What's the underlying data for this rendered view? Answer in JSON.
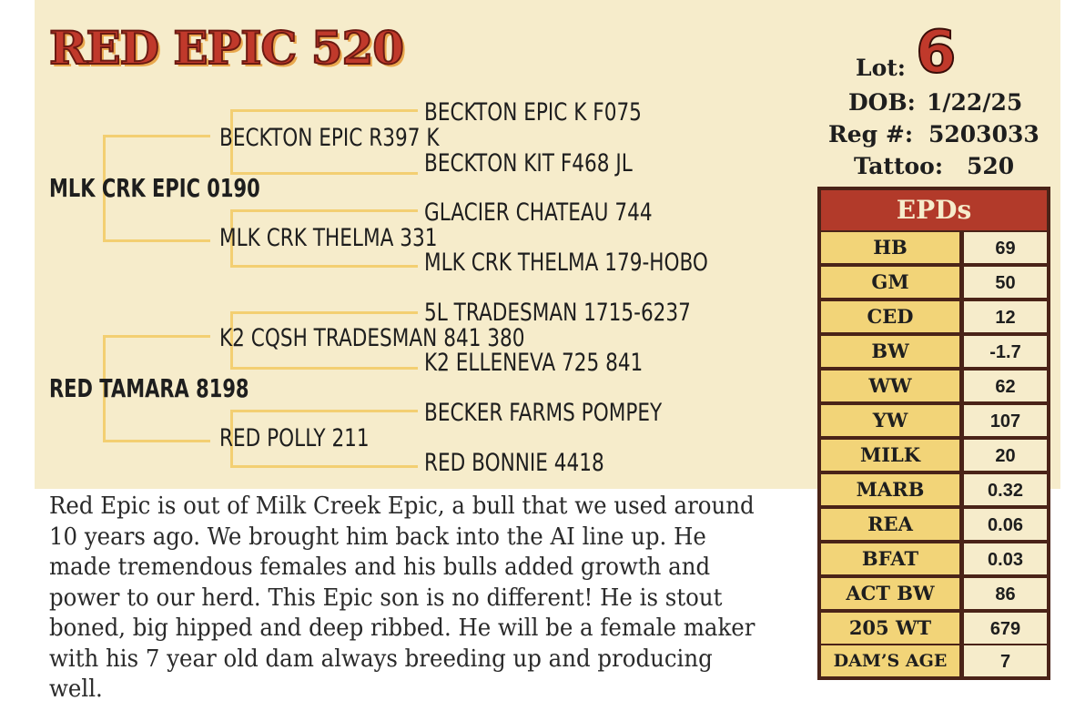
{
  "title": "RED EPIC 520",
  "lot": {
    "label": "Lot:",
    "number": "6"
  },
  "dob": {
    "label": "DOB:",
    "value": "1/22/25"
  },
  "reg": {
    "label": "Reg #:",
    "value": "5203033"
  },
  "tattoo": {
    "label": "Tattoo:",
    "value": "520"
  },
  "pedigree": {
    "sire": "MLK CRK EPIC 0190",
    "sire_sire": "BECKTON EPIC R397 K",
    "sire_sire_sire": "BECKTON EPIC K F075",
    "sire_sire_dam": "BECKTON KIT F468 JL",
    "sire_dam": "MLK CRK THELMA 331",
    "sire_dam_sire": "GLACIER CHATEAU 744",
    "sire_dam_dam": "MLK CRK THELMA 179-HOBO",
    "dam": "RED TAMARA 8198",
    "dam_sire": "K2 CQSH TRADESMAN 841 380",
    "dam_sire_sire": "5L TRADESMAN 1715-6237",
    "dam_sire_dam": "K2 ELLENEVA 725 841",
    "dam_dam": "RED POLLY 211",
    "dam_dam_sire": "BECKER FARMS POMPEY",
    "dam_dam_dam": "RED BONNIE 4418"
  },
  "epds": {
    "heading": "EPDs",
    "rows": [
      {
        "label": "HB",
        "value": "69"
      },
      {
        "label": "GM",
        "value": "50"
      },
      {
        "label": "CED",
        "value": "12"
      },
      {
        "label": "BW",
        "value": "-1.7"
      },
      {
        "label": "WW",
        "value": "62"
      },
      {
        "label": "YW",
        "value": "107"
      },
      {
        "label": "MILK",
        "value": "20"
      },
      {
        "label": "MARB",
        "value": "0.32"
      },
      {
        "label": "REA",
        "value": "0.06"
      },
      {
        "label": "BFAT",
        "value": "0.03"
      },
      {
        "label": "ACT BW",
        "value": "86"
      },
      {
        "label": "205 WT",
        "value": "679"
      },
      {
        "label": "DAM’S AGE",
        "value": "7"
      }
    ]
  },
  "description": "Red Epic is out of Milk Creek Epic, a bull that we used around 10 years ago. We brought him back into the AI line up. He made tremendous females and his bulls added growth and power to our herd. This Epic son is no different! He is stout boned, big hipped and deep ribbed. He will be a female maker with his 7 year old dam always breeding up and producing well.",
  "colors": {
    "title_red": "#c0392b",
    "panel_cream": "#f6eccb",
    "line_gold": "#f3cf72",
    "epd_border": "#4a2318",
    "epd_label_bg": "#f2d478"
  }
}
